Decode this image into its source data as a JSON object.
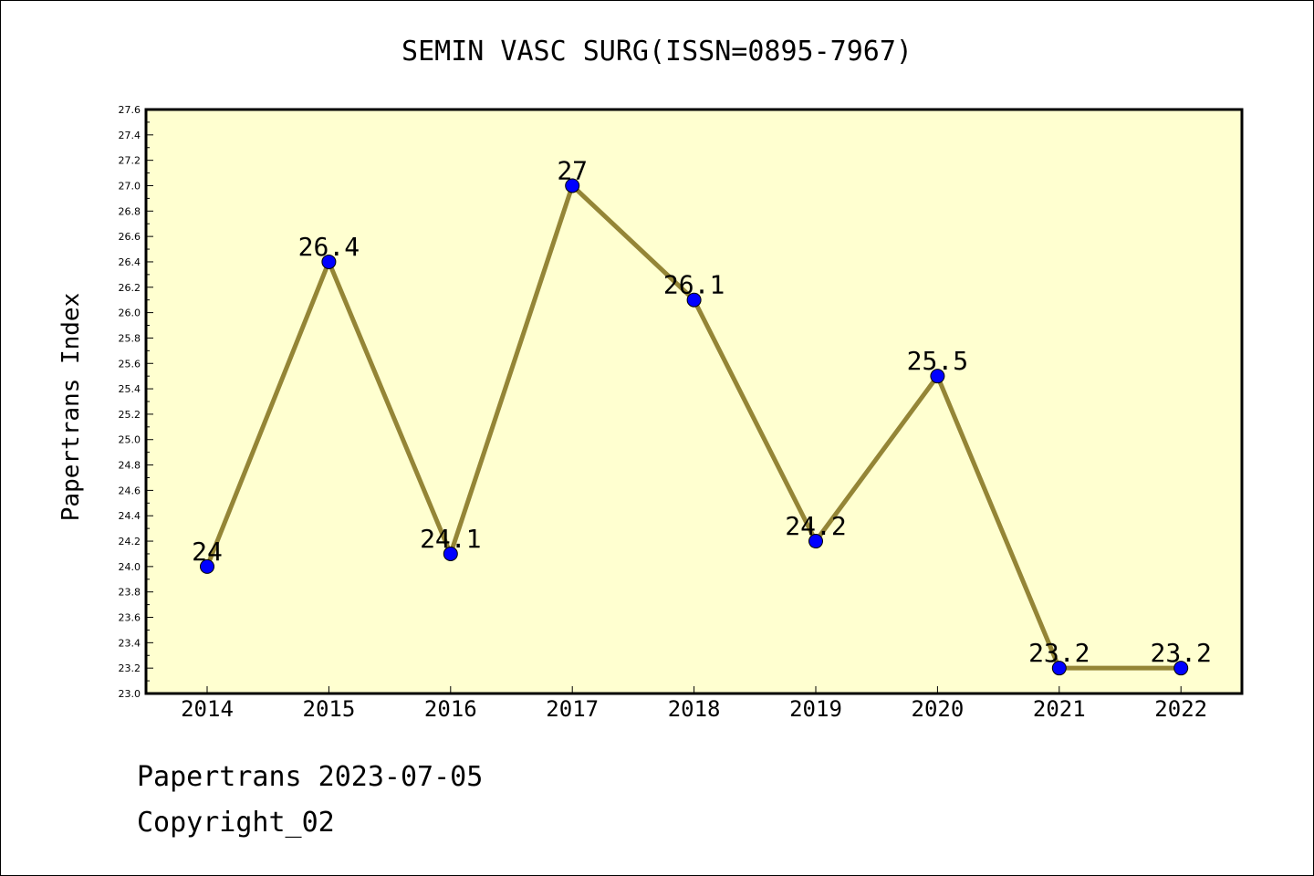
{
  "chart_data": {
    "type": "line",
    "title": "SEMIN VASC SURG(ISSN=0895-7967)",
    "ylabel": "Papertrans Index",
    "xlabel": "",
    "categories": [
      "2014",
      "2015",
      "2016",
      "2017",
      "2018",
      "2019",
      "2020",
      "2021",
      "2022"
    ],
    "values": [
      24,
      26.4,
      24.1,
      27,
      26.1,
      24.2,
      25.5,
      23.2,
      23.2
    ],
    "data_labels": [
      "24",
      "26.4",
      "24.1",
      "27",
      "26.1",
      "24.2",
      "25.5",
      "23.2",
      "23.2"
    ],
    "ylim": [
      23.0,
      27.6
    ],
    "y_ticks": [
      "23.0",
      "23.2",
      "23.4",
      "23.6",
      "23.8",
      "24.0",
      "24.2",
      "24.4",
      "24.6",
      "24.8",
      "25.0",
      "25.2",
      "25.4",
      "25.6",
      "25.8",
      "26.0",
      "26.2",
      "26.4",
      "26.6",
      "26.8",
      "27.0",
      "27.2",
      "27.4",
      "27.6"
    ],
    "grid": false,
    "colors": {
      "plot_background": "#ffffd0",
      "line": "#948536",
      "marker": "#0000ff"
    }
  },
  "footer": {
    "date_line": "Papertrans 2023-07-05",
    "copyright": "Copyright_02"
  }
}
